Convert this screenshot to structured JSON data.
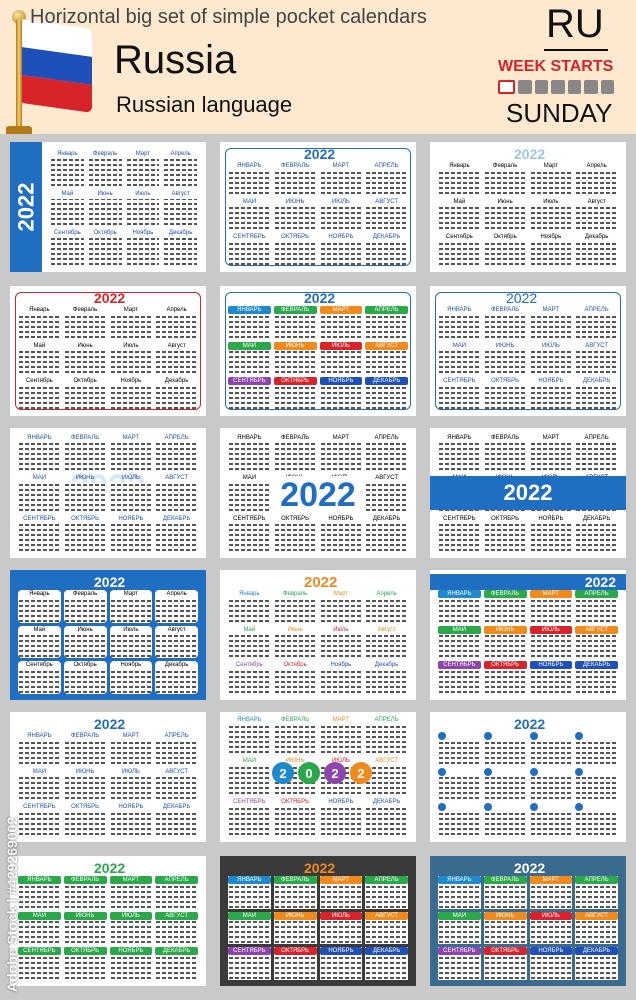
{
  "header": {
    "title": "Horizontal big set of simple pocket calendars",
    "country": "Russia",
    "language": "Russian language",
    "code": "RU",
    "week_starts": "WEEK STARTS",
    "week_start_day": "SUNDAY"
  },
  "year": "2022",
  "months": [
    "Январь",
    "Февраль",
    "Март",
    "Апрель",
    "Май",
    "Июнь",
    "Июль",
    "Август",
    "Сентябрь",
    "Октябрь",
    "Ноябрь",
    "Декабрь"
  ],
  "months_upper": [
    "ЯНВАРЬ",
    "ФЕВРАЛЬ",
    "МАРТ",
    "АПРЕЛЬ",
    "МАЙ",
    "ИЮНЬ",
    "ИЮЛЬ",
    "АВГУСТ",
    "СЕНТЯБРЬ",
    "ОКТЯБРЬ",
    "НОЯБРЬ",
    "ДЕКАБРЬ"
  ],
  "year_digits": [
    "2",
    "0",
    "2",
    "2"
  ],
  "watermark": "Adobe Stock | #429269002",
  "colors": {
    "primary_blue": "#1f6ec2",
    "red": "#d8232a",
    "month_palette": [
      "#1f8acb",
      "#2aa84a",
      "#f08a1c",
      "#2aa84a",
      "#2aa84a",
      "#f08a1c",
      "#d8232a",
      "#f08a1c",
      "#8e44ad",
      "#d8232a",
      "#1f4fb8",
      "#1f4fb8"
    ]
  }
}
